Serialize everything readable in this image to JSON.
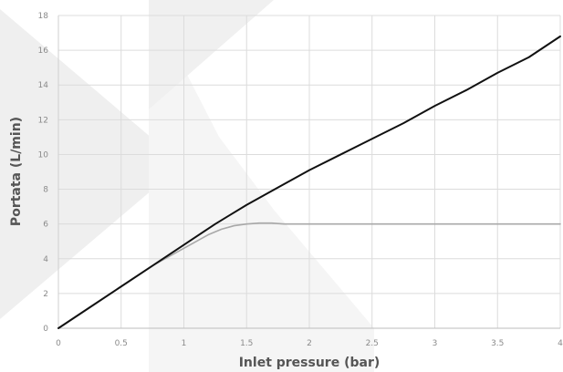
{
  "chart_data": {
    "type": "line",
    "xlabel": "Inlet pressure (bar)",
    "ylabel": "Portata (L/min)",
    "xlim": [
      0,
      4
    ],
    "ylim": [
      0,
      18
    ],
    "xticks": [
      0,
      0.5,
      1,
      1.5,
      2,
      2.5,
      3,
      3.5,
      4
    ],
    "xtick_labels": [
      "0",
      "0.5",
      "1",
      "1.5",
      "2",
      "2.5",
      "3",
      "3.5",
      "4"
    ],
    "yticks": [
      0,
      2,
      4,
      6,
      8,
      10,
      12,
      14,
      16,
      18
    ],
    "ytick_labels": [
      "0",
      "2",
      "4",
      "6",
      "8",
      "10",
      "12",
      "14",
      "16",
      "18"
    ],
    "grid": true,
    "series": [
      {
        "color": "#111111",
        "x": [
          0,
          0.25,
          0.5,
          0.75,
          1,
          1.25,
          1.5,
          1.75,
          2,
          2.25,
          2.5,
          2.75,
          3,
          3.25,
          3.5,
          3.75,
          4
        ],
        "y": [
          0,
          1.2,
          2.4,
          3.6,
          4.8,
          6.0,
          7.1,
          8.1,
          9.1,
          10.0,
          10.9,
          11.8,
          12.8,
          13.7,
          14.7,
          15.6,
          16.8
        ]
      },
      {
        "color": "#a8a8a8",
        "x": [
          0,
          0.25,
          0.5,
          0.75,
          1,
          1.1,
          1.2,
          1.3,
          1.4,
          1.5,
          1.6,
          1.7,
          1.8,
          2,
          2.5,
          3,
          3.5,
          4
        ],
        "y": [
          0,
          1.2,
          2.4,
          3.6,
          4.6,
          5.0,
          5.4,
          5.7,
          5.9,
          6.0,
          6.05,
          6.05,
          6.0,
          6.0,
          6.0,
          6.0,
          6.0,
          6.0
        ]
      }
    ]
  }
}
